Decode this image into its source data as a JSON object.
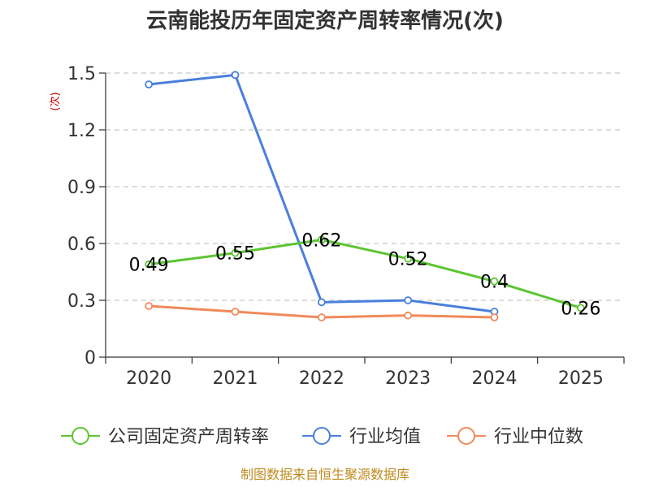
{
  "chart_data": {
    "type": "line",
    "title": "云南能投历年固定资产周转率情况(次)",
    "ylabel": "(次)",
    "xlabel": "",
    "categories": [
      "2020",
      "2021",
      "2022",
      "2023",
      "2024",
      "2025"
    ],
    "ylim": [
      0,
      1.5
    ],
    "yticks": [
      "0",
      "0.3",
      "0.6",
      "0.9",
      "1.2",
      "1.5"
    ],
    "grid": true,
    "legend_position": "bottom",
    "series": [
      {
        "name": "公司固定资产周转率",
        "color": "#5cc531",
        "values": [
          0.49,
          0.55,
          0.62,
          0.52,
          0.4,
          0.26
        ],
        "labels": [
          "0.49",
          "0.55",
          "0.62",
          "0.52",
          "0.4",
          "0.26"
        ]
      },
      {
        "name": "行业均值",
        "color": "#4a7fdc",
        "values": [
          1.44,
          1.49,
          0.29,
          0.3,
          0.24,
          null
        ]
      },
      {
        "name": "行业中位数",
        "color": "#f28a5a",
        "values": [
          0.27,
          0.24,
          0.21,
          0.22,
          0.21,
          null
        ]
      }
    ],
    "source": "制图数据来自恒生聚源数据库"
  }
}
